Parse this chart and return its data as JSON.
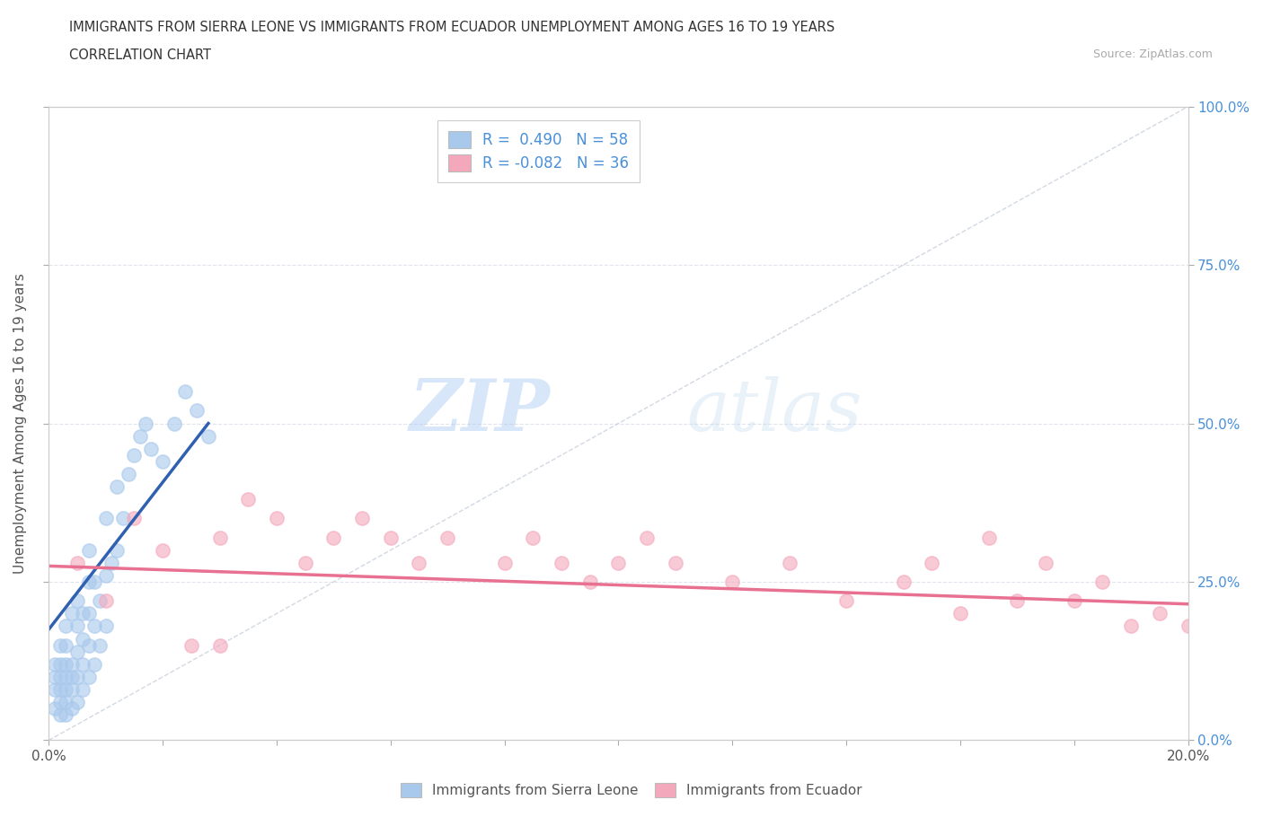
{
  "title_line1": "IMMIGRANTS FROM SIERRA LEONE VS IMMIGRANTS FROM ECUADOR UNEMPLOYMENT AMONG AGES 16 TO 19 YEARS",
  "title_line2": "CORRELATION CHART",
  "source": "Source: ZipAtlas.com",
  "ylabel": "Unemployment Among Ages 16 to 19 years",
  "legend_label1": "Immigrants from Sierra Leone",
  "legend_label2": "Immigrants from Ecuador",
  "R1": 0.49,
  "N1": 58,
  "R2": -0.082,
  "N2": 36,
  "xmin": 0.0,
  "xmax": 0.2,
  "ymin": 0.0,
  "ymax": 1.0,
  "color_blue": "#A8C8EC",
  "color_pink": "#F4A8BC",
  "color_blue_line": "#3060B0",
  "color_pink_line": "#E87090",
  "color_diag": "#C0C8D8",
  "sierra_leone_x": [
    0.001,
    0.001,
    0.001,
    0.001,
    0.002,
    0.002,
    0.002,
    0.002,
    0.002,
    0.002,
    0.003,
    0.003,
    0.003,
    0.003,
    0.003,
    0.003,
    0.003,
    0.004,
    0.004,
    0.004,
    0.004,
    0.004,
    0.005,
    0.005,
    0.005,
    0.005,
    0.005,
    0.006,
    0.006,
    0.006,
    0.006,
    0.007,
    0.007,
    0.007,
    0.007,
    0.007,
    0.008,
    0.008,
    0.008,
    0.009,
    0.009,
    0.01,
    0.01,
    0.01,
    0.011,
    0.012,
    0.012,
    0.013,
    0.014,
    0.015,
    0.016,
    0.017,
    0.018,
    0.02,
    0.022,
    0.024,
    0.026,
    0.028
  ],
  "sierra_leone_y": [
    0.05,
    0.08,
    0.1,
    0.12,
    0.04,
    0.06,
    0.08,
    0.1,
    0.12,
    0.15,
    0.04,
    0.06,
    0.08,
    0.1,
    0.12,
    0.15,
    0.18,
    0.05,
    0.08,
    0.1,
    0.12,
    0.2,
    0.06,
    0.1,
    0.14,
    0.18,
    0.22,
    0.08,
    0.12,
    0.16,
    0.2,
    0.1,
    0.15,
    0.2,
    0.25,
    0.3,
    0.12,
    0.18,
    0.25,
    0.15,
    0.22,
    0.18,
    0.26,
    0.35,
    0.28,
    0.3,
    0.4,
    0.35,
    0.42,
    0.45,
    0.48,
    0.5,
    0.46,
    0.44,
    0.5,
    0.55,
    0.52,
    0.48
  ],
  "ecuador_x": [
    0.005,
    0.01,
    0.015,
    0.02,
    0.025,
    0.03,
    0.035,
    0.04,
    0.045,
    0.05,
    0.055,
    0.06,
    0.065,
    0.07,
    0.08,
    0.085,
    0.09,
    0.095,
    0.1,
    0.105,
    0.11,
    0.12,
    0.13,
    0.14,
    0.15,
    0.155,
    0.16,
    0.165,
    0.17,
    0.175,
    0.18,
    0.185,
    0.19,
    0.195,
    0.2,
    0.03
  ],
  "ecuador_y": [
    0.28,
    0.22,
    0.35,
    0.3,
    0.15,
    0.32,
    0.38,
    0.35,
    0.28,
    0.32,
    0.35,
    0.32,
    0.28,
    0.32,
    0.28,
    0.32,
    0.28,
    0.25,
    0.28,
    0.32,
    0.28,
    0.25,
    0.28,
    0.22,
    0.25,
    0.28,
    0.2,
    0.32,
    0.22,
    0.28,
    0.22,
    0.25,
    0.18,
    0.2,
    0.18,
    0.15
  ],
  "watermark_zip": "ZIP",
  "watermark_atlas": "atlas",
  "background_color": "#FFFFFF",
  "grid_color": "#E0E4EC"
}
